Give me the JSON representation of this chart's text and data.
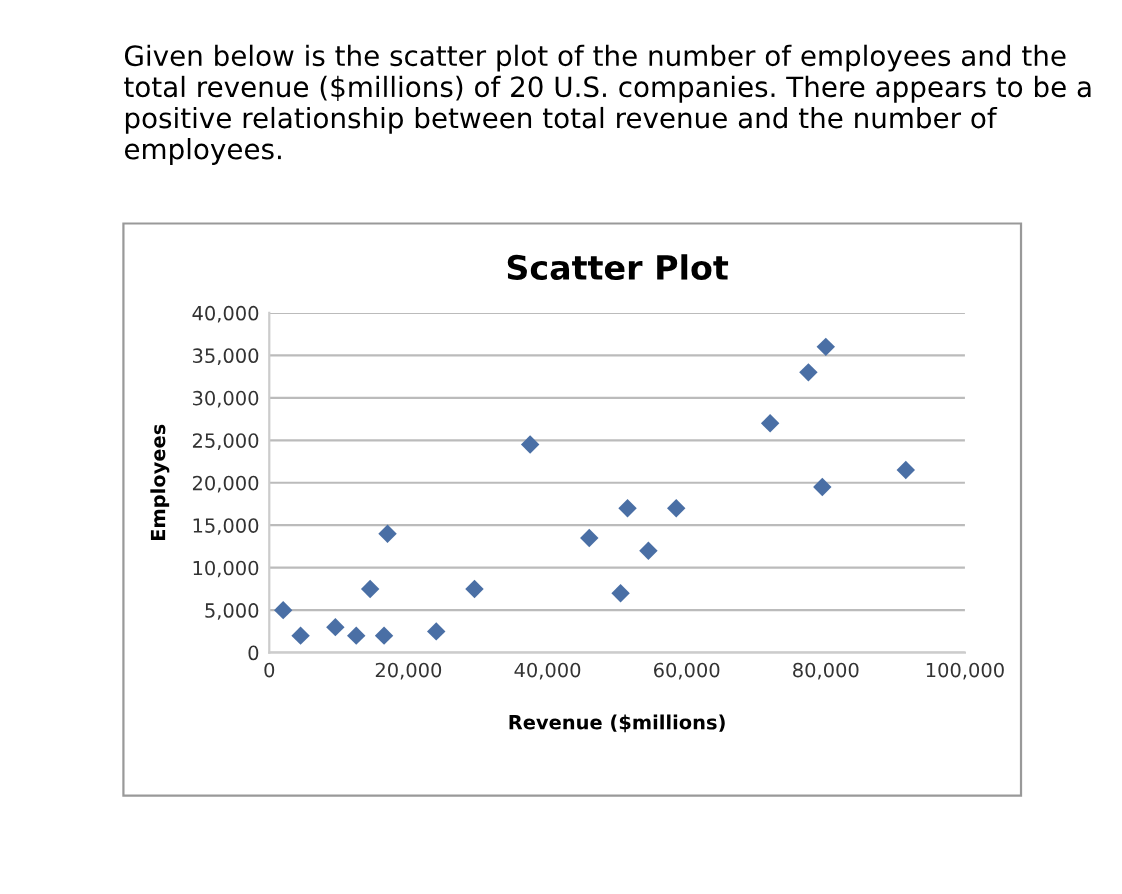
{
  "chart_data": {
    "type": "scatter",
    "title": "Scatter Plot",
    "xlabel": "Revenue ($millions)",
    "ylabel": "Employees",
    "annotations": [
      "Given below is the scatter plot of the number of employees and the total revenue ($millions) of 20 U.S. companies. There appears to be a positive relationship between total revenue and the number of employees."
    ],
    "x": [
      2000,
      4500,
      9500,
      12500,
      14500,
      17000,
      16500,
      24000,
      29500,
      37500,
      46000,
      50500,
      51500,
      54500,
      58500,
      72000,
      77500,
      79500,
      80000,
      91500
    ],
    "values": [
      5000,
      2000,
      3000,
      2000,
      7500,
      14000,
      2000,
      2500,
      7500,
      24500,
      13500,
      7000,
      17000,
      12000,
      17000,
      27000,
      33000,
      19500,
      36000,
      21500
    ],
    "color": "#4a6fa5",
    "marker": "diamond",
    "grid": "y",
    "xlim": [
      0,
      100000
    ],
    "xticks": [
      0,
      {
        "value": 20000,
        "label": "20,000"
      },
      {
        "value": 40000,
        "label": "40,000"
      },
      {
        "value": 60000,
        "label": "60,000"
      },
      {
        "value": 80000,
        "label": "80,000"
      },
      {
        "value": 100000,
        "label": "100,000"
      }
    ],
    "ylim": [
      0,
      40000
    ],
    "yticks": [
      0,
      {
        "value": 5000,
        "label": "5,000"
      },
      {
        "value": 10000,
        "label": "10,000"
      },
      {
        "value": 15000,
        "label": "15,000"
      },
      {
        "value": 20000,
        "label": "20,000"
      },
      {
        "value": 25000,
        "label": "25,000"
      },
      {
        "value": 30000,
        "label": "30,000"
      },
      {
        "value": 35000,
        "label": "35,000"
      },
      {
        "value": 40000,
        "label": "40,000"
      }
    ]
  }
}
